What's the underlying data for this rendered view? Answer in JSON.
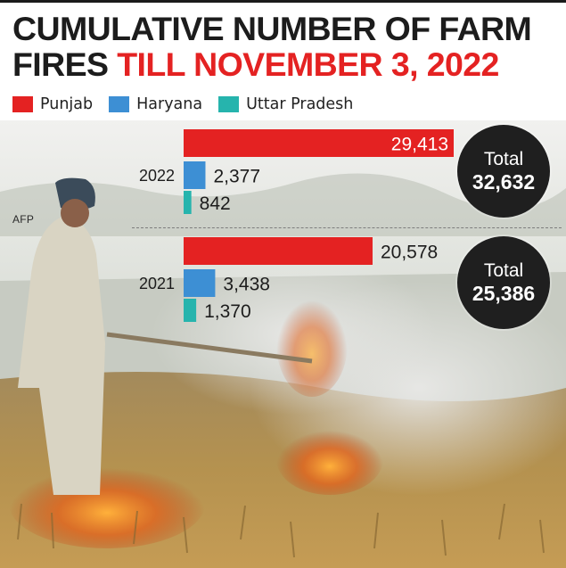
{
  "title": {
    "line1": "CUMULATIVE NUMBER OF FARM",
    "line2_prefix": "FIRES ",
    "line2_highlight": "TILL NOVEMBER 3, 2022"
  },
  "credit": "AFP",
  "colors": {
    "Punjab": "#e42222",
    "Haryana": "#3d8fd4",
    "Uttar Pradesh": "#26b4ad",
    "title_highlight": "#e42222",
    "badge": "#1f1f1f"
  },
  "totals": [
    {
      "label": "Total",
      "value": "32,632"
    },
    {
      "label": "Total",
      "value": "25,386"
    }
  ],
  "chart_data": {
    "type": "bar",
    "orientation": "horizontal",
    "title": "CUMULATIVE NUMBER OF FARM FIRES TILL NOVEMBER 3, 2022",
    "categories": [
      "2022",
      "2021"
    ],
    "series": [
      {
        "name": "Punjab",
        "values": [
          29413,
          20578
        ],
        "labels": [
          "29,413",
          "20,578"
        ]
      },
      {
        "name": "Haryana",
        "values": [
          2377,
          3438
        ],
        "labels": [
          "2,377",
          "3,438"
        ]
      },
      {
        "name": "Uttar Pradesh",
        "values": [
          842,
          1370
        ],
        "labels": [
          "842",
          "1,370"
        ]
      }
    ],
    "xlim": [
      0,
      29413
    ],
    "grid": false,
    "legend": "top-left"
  }
}
